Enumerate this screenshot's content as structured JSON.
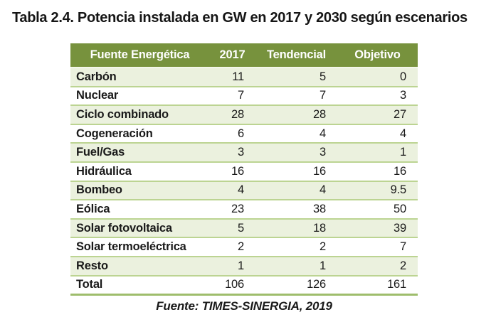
{
  "title": "Tabla 2.4. Potencia instalada en GW en 2017 y 2030 según escenarios",
  "table": {
    "headers": [
      "Fuente Energética",
      "2017",
      "Tendencial",
      "Objetivo"
    ],
    "rows": [
      {
        "label": "Carbón",
        "values": [
          "11",
          "5",
          "0"
        ]
      },
      {
        "label": "Nuclear",
        "values": [
          "7",
          "7",
          "3"
        ]
      },
      {
        "label": "Ciclo combinado",
        "values": [
          "28",
          "28",
          "27"
        ]
      },
      {
        "label": "Cogeneración",
        "values": [
          "6",
          "4",
          "4"
        ]
      },
      {
        "label": "Fuel/Gas",
        "values": [
          "3",
          "3",
          "1"
        ]
      },
      {
        "label": "Hidráulica",
        "values": [
          "16",
          "16",
          "16"
        ]
      },
      {
        "label": "Bombeo",
        "values": [
          "4",
          "4",
          "9.5"
        ]
      },
      {
        "label": "Eólica",
        "values": [
          "23",
          "38",
          "50"
        ]
      },
      {
        "label": "Solar fotovoltaica",
        "values": [
          "5",
          "18",
          "39"
        ]
      },
      {
        "label": "Solar termoeléctrica",
        "values": [
          "2",
          "2",
          "7"
        ]
      },
      {
        "label": "Resto",
        "values": [
          "1",
          "1",
          "2"
        ]
      },
      {
        "label": "Total",
        "values": [
          "106",
          "126",
          "161"
        ]
      }
    ],
    "source": "Fuente: TIMES-SINERGIA, 2019"
  },
  "colors": {
    "header_bg": "#77923D",
    "header_text": "#FFFFFF",
    "stripe_bg": "#EBF1DE",
    "row_line": "#BCD492",
    "bottom_border": "#9EBD6C",
    "text": "#1A1A1A"
  }
}
